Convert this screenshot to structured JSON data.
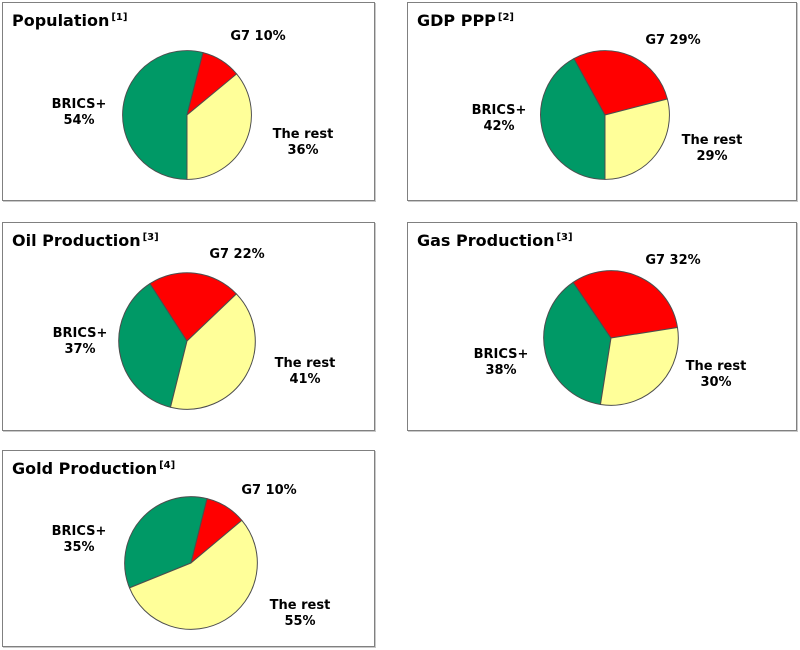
{
  "colors": {
    "brics": "#009966",
    "g7": "#FF0000",
    "rest": "#FFFF99",
    "pie_outline": "#4D4D4D",
    "panel_border": "#808080",
    "text": "#000000"
  },
  "series_names": [
    "BRICS+",
    "G7",
    "The rest"
  ],
  "charts": [
    {
      "title": "Population",
      "ref": "[1]",
      "g7_label": "G7 10%",
      "brics_line1": "BRICS+",
      "brics_line2": "54%",
      "rest_line1": "The rest",
      "rest_line2": "36%"
    },
    {
      "title": "GDP PPP",
      "ref": "[2]",
      "g7_label": "G7 29%",
      "brics_line1": "BRICS+",
      "brics_line2": "42%",
      "rest_line1": "The rest",
      "rest_line2": "29%"
    },
    {
      "title": "Oil Production",
      "ref": "[3]",
      "g7_label": "G7 22%",
      "brics_line1": "BRICS+",
      "brics_line2": "37%",
      "rest_line1": "The rest",
      "rest_line2": "41%"
    },
    {
      "title": "Gas Production",
      "ref": "[3]",
      "g7_label": "G7 32%",
      "brics_line1": "BRICS+",
      "brics_line2": "38%",
      "rest_line1": "The rest",
      "rest_line2": "30%"
    },
    {
      "title": "Gold Production",
      "ref": "[4]",
      "g7_label": "G7 10%",
      "brics_line1": "BRICS+",
      "brics_line2": "35%",
      "rest_line1": "The rest",
      "rest_line2": "55%"
    }
  ],
  "chart_data": [
    {
      "type": "pie",
      "title": "Population [1]",
      "labels": [
        "BRICS+",
        "G7",
        "The rest"
      ],
      "values": [
        54,
        10,
        36
      ],
      "colors": [
        "#009966",
        "#FF0000",
        "#FFFF99"
      ],
      "start_angle_deg_cw_from_top": 180,
      "legend": "none",
      "data_labels": "outside"
    },
    {
      "type": "pie",
      "title": "GDP PPP [2]",
      "labels": [
        "BRICS+",
        "G7",
        "The rest"
      ],
      "values": [
        42,
        29,
        29
      ],
      "colors": [
        "#009966",
        "#FF0000",
        "#FFFF99"
      ],
      "start_angle_deg_cw_from_top": 180,
      "legend": "none",
      "data_labels": "outside"
    },
    {
      "type": "pie",
      "title": "Oil Production [3]",
      "labels": [
        "BRICS+",
        "G7",
        "The rest"
      ],
      "values": [
        37,
        22,
        41
      ],
      "colors": [
        "#009966",
        "#FF0000",
        "#FFFF99"
      ],
      "start_angle_deg_cw_from_top": 194,
      "legend": "none",
      "data_labels": "outside"
    },
    {
      "type": "pie",
      "title": "Gas Production [3]",
      "labels": [
        "BRICS+",
        "G7",
        "The rest"
      ],
      "values": [
        38,
        32,
        30
      ],
      "colors": [
        "#009966",
        "#FF0000",
        "#FFFF99"
      ],
      "start_angle_deg_cw_from_top": 189,
      "legend": "none",
      "data_labels": "outside"
    },
    {
      "type": "pie",
      "title": "Gold Production [4]",
      "labels": [
        "BRICS+",
        "G7",
        "The rest"
      ],
      "values": [
        35,
        10,
        55
      ],
      "colors": [
        "#009966",
        "#FF0000",
        "#FFFF99"
      ],
      "start_angle_deg_cw_from_top": 248,
      "legend": "none",
      "data_labels": "outside"
    }
  ]
}
